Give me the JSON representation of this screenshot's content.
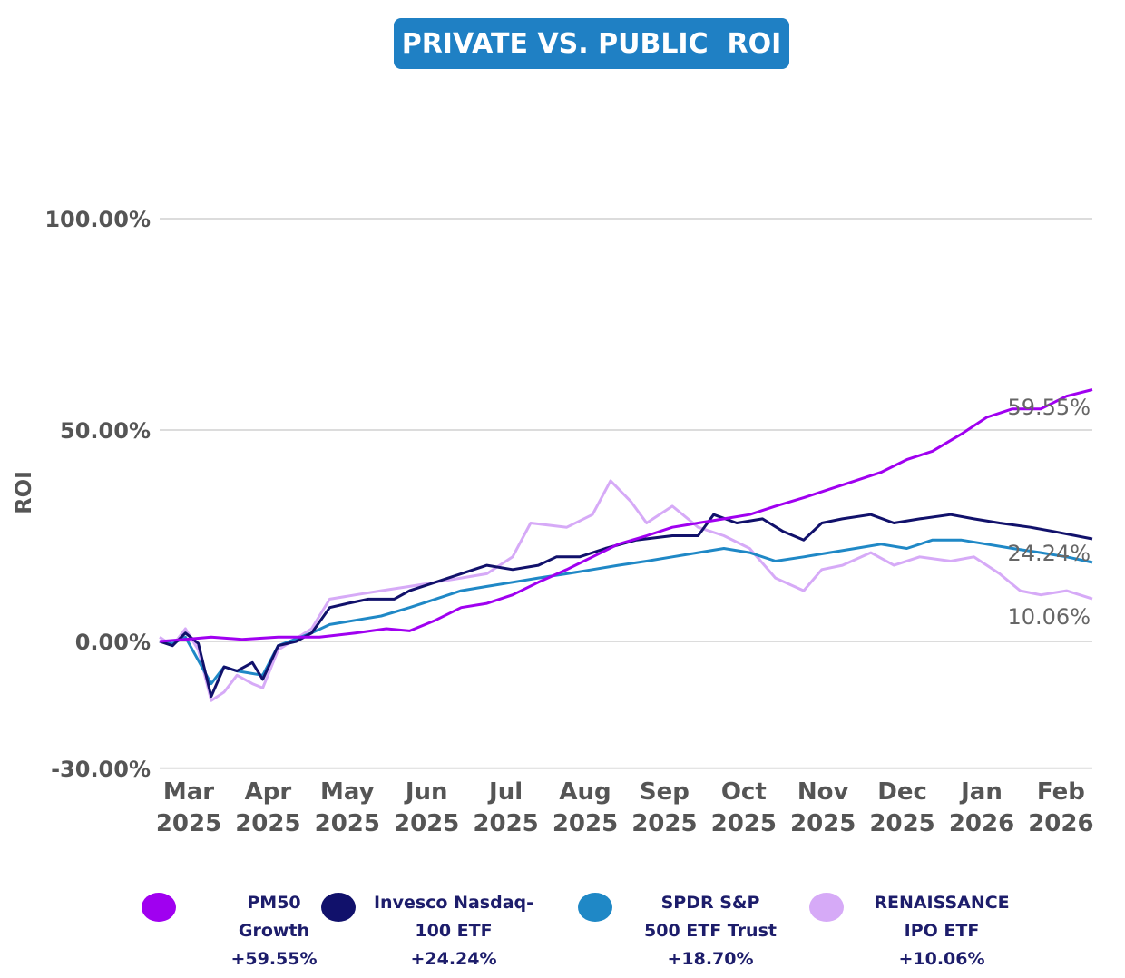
{
  "header": {
    "title": "PRIVATE VS. PUBLIC  ROI"
  },
  "chart_data": {
    "type": "line",
    "title": "PRIVATE VS. PUBLIC  ROI",
    "xlabel": "",
    "ylabel": "ROI",
    "ylim": [
      -30,
      100
    ],
    "x_range": [
      "2025-02-28",
      "2026-02-25"
    ],
    "y_ticks": [
      {
        "value": 100,
        "label": "100.00%"
      },
      {
        "value": 50,
        "label": "50.00%"
      },
      {
        "value": 0,
        "label": "0.00%"
      },
      {
        "value": -30,
        "label": "-30.00%"
      }
    ],
    "x_ticks": [
      {
        "date": "2025-03-01",
        "month": "Mar",
        "year": "2025"
      },
      {
        "date": "2025-04-01",
        "month": "Apr",
        "year": "2025"
      },
      {
        "date": "2025-05-01",
        "month": "May",
        "year": "2025"
      },
      {
        "date": "2025-06-01",
        "month": "Jun",
        "year": "2025"
      },
      {
        "date": "2025-07-01",
        "month": "Jul",
        "year": "2025"
      },
      {
        "date": "2025-08-01",
        "month": "Aug",
        "year": "2025"
      },
      {
        "date": "2025-09-01",
        "month": "Sep",
        "year": "2025"
      },
      {
        "date": "2025-10-01",
        "month": "Oct",
        "year": "2025"
      },
      {
        "date": "2025-11-01",
        "month": "Nov",
        "year": "2025"
      },
      {
        "date": "2025-12-01",
        "month": "Dec",
        "year": "2025"
      },
      {
        "date": "2026-01-01",
        "month": "Jan",
        "year": "2026"
      },
      {
        "date": "2026-02-01",
        "month": "Feb",
        "year": "2026"
      }
    ],
    "grid": "horizontal",
    "legend_placement": "bottom",
    "series": [
      {
        "name": "PM50 Growth",
        "color": "#a000f0",
        "points": [
          [
            "2025-02-28",
            0
          ],
          [
            "2025-03-10",
            0.5
          ],
          [
            "2025-03-20",
            1
          ],
          [
            "2025-04-01",
            0.5
          ],
          [
            "2025-04-15",
            1
          ],
          [
            "2025-05-01",
            1
          ],
          [
            "2025-05-15",
            2
          ],
          [
            "2025-05-27",
            3
          ],
          [
            "2025-06-05",
            2.5
          ],
          [
            "2025-06-15",
            5
          ],
          [
            "2025-06-25",
            8
          ],
          [
            "2025-07-05",
            9
          ],
          [
            "2025-07-15",
            11
          ],
          [
            "2025-07-25",
            14
          ],
          [
            "2025-08-05",
            17
          ],
          [
            "2025-08-15",
            20
          ],
          [
            "2025-08-25",
            23
          ],
          [
            "2025-09-05",
            25
          ],
          [
            "2025-09-15",
            27
          ],
          [
            "2025-09-25",
            28
          ],
          [
            "2025-10-05",
            29
          ],
          [
            "2025-10-15",
            30
          ],
          [
            "2025-10-25",
            32
          ],
          [
            "2025-11-05",
            34
          ],
          [
            "2025-11-15",
            36
          ],
          [
            "2025-11-25",
            38
          ],
          [
            "2025-12-05",
            40
          ],
          [
            "2025-12-15",
            43
          ],
          [
            "2025-12-25",
            45
          ],
          [
            "2026-01-05",
            49
          ],
          [
            "2026-01-15",
            53
          ],
          [
            "2026-01-25",
            55
          ],
          [
            "2026-02-05",
            55
          ],
          [
            "2026-02-15",
            58
          ],
          [
            "2026-02-25",
            59.55
          ]
        ]
      },
      {
        "name": "Invesco Nasdaq-100 ETF",
        "color": "#11116b",
        "points": [
          [
            "2025-02-28",
            0
          ],
          [
            "2025-03-05",
            -1
          ],
          [
            "2025-03-10",
            2
          ],
          [
            "2025-03-15",
            -0.5
          ],
          [
            "2025-03-20",
            -13
          ],
          [
            "2025-03-25",
            -6
          ],
          [
            "2025-03-30",
            -7
          ],
          [
            "2025-04-05",
            -5
          ],
          [
            "2025-04-09",
            -9
          ],
          [
            "2025-04-15",
            -1
          ],
          [
            "2025-04-22",
            0
          ],
          [
            "2025-04-28",
            2
          ],
          [
            "2025-05-05",
            8
          ],
          [
            "2025-05-12",
            9
          ],
          [
            "2025-05-20",
            10
          ],
          [
            "2025-05-30",
            10
          ],
          [
            "2025-06-05",
            12
          ],
          [
            "2025-06-15",
            14
          ],
          [
            "2025-06-25",
            16
          ],
          [
            "2025-07-05",
            18
          ],
          [
            "2025-07-15",
            17
          ],
          [
            "2025-07-25",
            18
          ],
          [
            "2025-08-01",
            20
          ],
          [
            "2025-08-10",
            20
          ],
          [
            "2025-08-20",
            22
          ],
          [
            "2025-09-01",
            24
          ],
          [
            "2025-09-15",
            25
          ],
          [
            "2025-09-25",
            25
          ],
          [
            "2025-10-01",
            30
          ],
          [
            "2025-10-10",
            28
          ],
          [
            "2025-10-20",
            29
          ],
          [
            "2025-10-28",
            26
          ],
          [
            "2025-11-05",
            24
          ],
          [
            "2025-11-12",
            28
          ],
          [
            "2025-11-20",
            29
          ],
          [
            "2025-12-01",
            30
          ],
          [
            "2025-12-10",
            28
          ],
          [
            "2025-12-20",
            29
          ],
          [
            "2026-01-01",
            30
          ],
          [
            "2026-01-10",
            29
          ],
          [
            "2026-01-20",
            28
          ],
          [
            "2026-02-01",
            27
          ],
          [
            "2026-02-10",
            26
          ],
          [
            "2026-02-25",
            24.24
          ]
        ]
      },
      {
        "name": "SPDR S&P 500 ETF Trust",
        "color": "#1f88c6",
        "points": [
          [
            "2025-02-28",
            0
          ],
          [
            "2025-03-05",
            -0.5
          ],
          [
            "2025-03-10",
            1
          ],
          [
            "2025-03-20",
            -10
          ],
          [
            "2025-03-25",
            -6
          ],
          [
            "2025-03-30",
            -7
          ],
          [
            "2025-04-09",
            -8
          ],
          [
            "2025-04-15",
            -1
          ],
          [
            "2025-04-28",
            2
          ],
          [
            "2025-05-05",
            4
          ],
          [
            "2025-05-15",
            5
          ],
          [
            "2025-05-25",
            6
          ],
          [
            "2025-06-05",
            8
          ],
          [
            "2025-06-15",
            10
          ],
          [
            "2025-06-25",
            12
          ],
          [
            "2025-07-05",
            13
          ],
          [
            "2025-07-15",
            14
          ],
          [
            "2025-07-25",
            15
          ],
          [
            "2025-08-05",
            16
          ],
          [
            "2025-08-15",
            17
          ],
          [
            "2025-08-25",
            18
          ],
          [
            "2025-09-05",
            19
          ],
          [
            "2025-09-15",
            20
          ],
          [
            "2025-09-25",
            21
          ],
          [
            "2025-10-05",
            22
          ],
          [
            "2025-10-15",
            21
          ],
          [
            "2025-10-25",
            19
          ],
          [
            "2025-11-05",
            20
          ],
          [
            "2025-11-15",
            21
          ],
          [
            "2025-11-25",
            22
          ],
          [
            "2025-12-05",
            23
          ],
          [
            "2025-12-15",
            22
          ],
          [
            "2025-12-25",
            24
          ],
          [
            "2026-01-05",
            24
          ],
          [
            "2026-01-15",
            23
          ],
          [
            "2026-01-25",
            22
          ],
          [
            "2026-02-05",
            21
          ],
          [
            "2026-02-15",
            20
          ],
          [
            "2026-02-25",
            18.7
          ]
        ]
      },
      {
        "name": "RENAISSANCE IPO ETF",
        "color": "#d6aaf7",
        "points": [
          [
            "2025-02-28",
            1
          ],
          [
            "2025-03-05",
            -1
          ],
          [
            "2025-03-10",
            3
          ],
          [
            "2025-03-15",
            -2
          ],
          [
            "2025-03-20",
            -14
          ],
          [
            "2025-03-25",
            -12
          ],
          [
            "2025-03-30",
            -8
          ],
          [
            "2025-04-05",
            -10
          ],
          [
            "2025-04-09",
            -11
          ],
          [
            "2025-04-15",
            -2
          ],
          [
            "2025-04-28",
            3
          ],
          [
            "2025-05-05",
            10
          ],
          [
            "2025-05-15",
            11
          ],
          [
            "2025-05-25",
            12
          ],
          [
            "2025-06-05",
            13
          ],
          [
            "2025-06-15",
            14
          ],
          [
            "2025-06-25",
            15
          ],
          [
            "2025-07-05",
            16
          ],
          [
            "2025-07-15",
            20
          ],
          [
            "2025-07-22",
            28
          ],
          [
            "2025-08-05",
            27
          ],
          [
            "2025-08-15",
            30
          ],
          [
            "2025-08-22",
            38
          ],
          [
            "2025-08-30",
            33
          ],
          [
            "2025-09-05",
            28
          ],
          [
            "2025-09-15",
            32
          ],
          [
            "2025-09-25",
            27
          ],
          [
            "2025-10-05",
            25
          ],
          [
            "2025-10-15",
            22
          ],
          [
            "2025-10-25",
            15
          ],
          [
            "2025-11-05",
            12
          ],
          [
            "2025-11-12",
            17
          ],
          [
            "2025-11-20",
            18
          ],
          [
            "2025-12-01",
            21
          ],
          [
            "2025-12-10",
            18
          ],
          [
            "2025-12-20",
            20
          ],
          [
            "2026-01-01",
            19
          ],
          [
            "2026-01-10",
            20
          ],
          [
            "2026-01-20",
            16
          ],
          [
            "2026-01-28",
            12
          ],
          [
            "2026-02-05",
            11
          ],
          [
            "2026-02-15",
            12
          ],
          [
            "2026-02-25",
            10.06
          ]
        ]
      }
    ],
    "end_labels": [
      "59.55%",
      "24.24%",
      "10.06%"
    ]
  },
  "legend": [
    {
      "lines": [
        "PM50",
        "Growth",
        "+59.55%"
      ],
      "color": "#a000f0"
    },
    {
      "lines": [
        "Invesco Nasdaq-",
        "100 ETF",
        "+24.24%"
      ],
      "color": "#11116b"
    },
    {
      "lines": [
        "SPDR S&P",
        "500 ETF Trust",
        "+18.70%"
      ],
      "color": "#1f88c6"
    },
    {
      "lines": [
        "RENAISSANCE",
        "IPO ETF",
        "+10.06%"
      ],
      "color": "#d6aaf7"
    }
  ]
}
